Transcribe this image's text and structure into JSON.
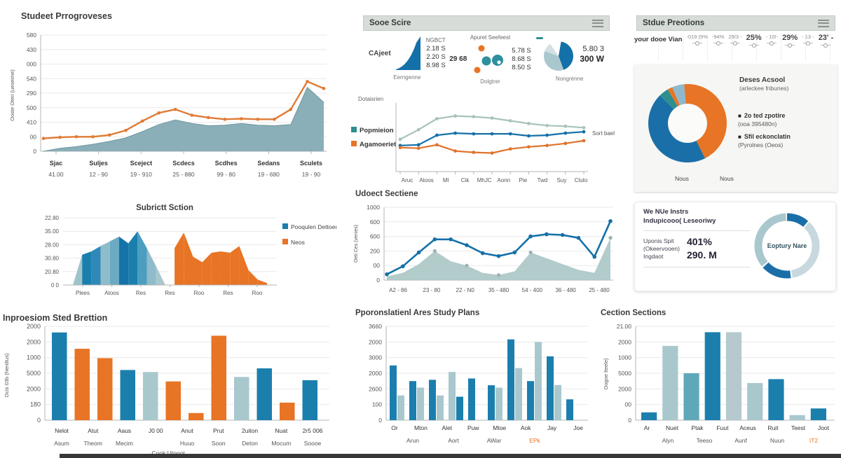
{
  "colors": {
    "blue": "#1b7fae",
    "dark_blue": "#1470a8",
    "orange": "#e87425",
    "teal_light": "#a9c8ce",
    "teal": "#2e8f8f",
    "sage": "#a8c3bb",
    "area_fill": "#8aafb8",
    "mid_teal": "#5fa8ba",
    "light_gray_teal": "#b5c9ce",
    "grid": "#e9e9e9",
    "axis": "#b5b5b5",
    "title_text": "#3b3b3b"
  },
  "panels": {
    "sooe": {
      "title": "Sooe Scire",
      "groups": [
        {
          "side_label": "CAjeet",
          "header": "NGBCT",
          "values": [
            "2.18 S",
            "2.20 S",
            "8.98 S"
          ],
          "caption": "Eerngenne"
        },
        {
          "header": "Apuret Seefeest",
          "big": "29 68",
          "values": [
            "5.78 S",
            "8.68 S",
            "8.50 S"
          ],
          "caption": "Dolgtrer"
        },
        {
          "header": "",
          "values": [
            "5.80 3",
            "300 W"
          ],
          "caption": "Nongrénne"
        }
      ]
    },
    "stdue": {
      "title": "Stdue Preotions",
      "label": "your dooe Vian",
      "items": [
        {
          "text": "-019 (9%",
          "big": false
        },
        {
          "text": "-94%",
          "big": false
        },
        {
          "text": "29/3 -",
          "big": false
        },
        {
          "text": "25%",
          "big": true
        },
        {
          "text": "- 10!-",
          "big": false
        },
        {
          "text": "29%",
          "big": true
        },
        {
          "text": "- 13 -",
          "big": false
        },
        {
          "text": "23' -",
          "big": true
        }
      ]
    }
  },
  "chart_data": [
    {
      "id": "student-progress",
      "type": "line",
      "title": "Studeet Prrogroveses",
      "ylabel": "Ooste Oteri (ueseime)",
      "ylim": [
        0,
        100
      ],
      "y_ticks": [
        "580",
        "430",
        "000",
        "540",
        "290",
        "500",
        "410",
        "00",
        "0"
      ],
      "x_ticks": [
        [
          "Sjac",
          "41.00"
        ],
        [
          "Suljes",
          "12 - 90"
        ],
        [
          "Sceject",
          "19 - 910"
        ],
        [
          "Scdecs",
          "25 - 880"
        ],
        [
          "Scdhes",
          "99 - 80"
        ],
        [
          "Sedans",
          "19 - 680"
        ],
        [
          "Sculets",
          "19 - 90"
        ]
      ],
      "series": [
        {
          "name": "enrollment-area",
          "kind": "area",
          "color": "#8aafb8",
          "values": [
            0,
            2.5,
            4,
            6,
            8.5,
            11.5,
            17,
            23,
            27,
            24,
            22,
            22.5,
            24,
            22.5,
            22,
            23,
            55,
            42
          ]
        },
        {
          "name": "score-line",
          "kind": "line",
          "color": "#e07b35",
          "markers": true,
          "values": [
            11,
            12,
            12.5,
            12.5,
            14,
            18,
            26,
            33,
            36,
            31,
            29,
            27.5,
            28,
            27.5,
            27.5,
            36,
            60,
            54
          ]
        }
      ]
    },
    {
      "id": "subject-section",
      "type": "area",
      "title": "Subrictt Sction",
      "ylim": [
        0,
        100
      ],
      "y_ticks": [
        "22.80",
        "35.00",
        "28.00",
        "30.80",
        "20.80",
        "0 0"
      ],
      "x_ticks": [
        "Plees",
        "Atoos",
        "Res",
        "Res",
        "Roo",
        "Res",
        "Roo"
      ],
      "legend": [
        {
          "label": "Pooqulen Dettoer",
          "color": "#1b7fae"
        },
        {
          "label": "Neos",
          "color": "#e87425"
        }
      ],
      "values": [
        0,
        45,
        50,
        58,
        65,
        72,
        62,
        80,
        55,
        28,
        0,
        55,
        78,
        42,
        34,
        48,
        50,
        48,
        58,
        22,
        8,
        3
      ],
      "band_colors": [
        "#9fc3ca",
        "#1b7fae",
        "#2e89b8",
        "#8fbcca",
        "#6aaac2",
        "#1473a8",
        "#1b7fae",
        "#4b9ec0",
        "#8fbcca",
        "#a9c8ce",
        "#ffffff",
        "#e87425",
        "#e87425",
        "#e87425",
        "#e87425",
        "#e87425",
        "#e87425",
        "#e87425",
        "#e87425",
        "#e87425",
        "#e87425"
      ]
    },
    {
      "id": "improvement",
      "type": "bar",
      "title": "Inproesiom Sted Brettion",
      "ylabel": "Ocis 03b (Nerdtus)",
      "ylim": [
        0,
        2300
      ],
      "y_ticks": [
        "2000",
        "2000",
        "1000",
        "5000",
        "2000",
        "180",
        "0"
      ],
      "values": [
        2150,
        1750,
        1520,
        1230,
        1180,
        950,
        175,
        2070,
        1060,
        1270,
        430,
        980
      ],
      "bar_colors": [
        "blue",
        "orange",
        "orange",
        "blue",
        "teal_light",
        "orange",
        "orange",
        "orange",
        "teal_light",
        "blue",
        "orange",
        "blue"
      ],
      "x_ticks": [
        [
          "Nelot",
          "Asum"
        ],
        [
          "Atut",
          "Theom"
        ],
        [
          "Aaus",
          "Mecim"
        ],
        [
          "J0 00",
          ""
        ],
        [
          "Anut",
          "Huuo"
        ],
        [
          "Prut",
          "Soon"
        ],
        [
          "2uiton",
          "Deton"
        ],
        [
          "Nuat",
          "Mocum"
        ],
        [
          "2r5 006",
          "Soooe"
        ]
      ],
      "x_footnote": "Cook Utooot"
    },
    {
      "id": "dotaisrien",
      "type": "line",
      "corner_label": "Dotaisrien",
      "right_label": "Sort bael",
      "ylim": [
        0,
        100
      ],
      "legend": [
        {
          "label": "Popmieion",
          "color": "#2e8f8f"
        },
        {
          "label": "Agamoeriet",
          "color": "#e87425"
        }
      ],
      "x_ticks": [
        "Aruc",
        "Atoos",
        "Ml",
        "Cik",
        "MhJC",
        "Aonn",
        "Pie",
        "Twd",
        "Suy",
        "Cluto"
      ],
      "series": [
        {
          "name": "upper",
          "color": "#a8c3bb",
          "markers": true,
          "values": [
            47,
            61,
            77,
            81,
            80,
            78,
            74,
            70,
            67,
            66,
            64
          ]
        },
        {
          "name": "middle",
          "color": "#1470a8",
          "markers": true,
          "values": [
            38,
            39,
            53,
            56,
            55,
            55,
            55,
            52,
            53,
            56,
            58
          ]
        },
        {
          "name": "lower",
          "color": "#e0732c",
          "markers": true,
          "values": [
            35,
            34,
            39,
            30,
            28,
            27,
            33,
            36,
            38,
            41,
            45
          ]
        }
      ]
    },
    {
      "id": "udoect",
      "type": "line",
      "title": "Udoect Sectiene",
      "ylabel": "Oeti Ces (venies)",
      "ylim": [
        0,
        100
      ],
      "y_ticks": [
        "1000",
        "600",
        "600",
        "200",
        "00",
        "0"
      ],
      "x_ticks": [
        "A2 - 86",
        "23 - 80",
        "22 - N0",
        "35 - 480",
        "54 - 400",
        "36 - 480",
        "25 - 480"
      ],
      "series": [
        {
          "name": "volume-area",
          "kind": "area",
          "color": "#aec8c8",
          "marker_color": "#9ab3b3",
          "marker_at": [
            3,
            5,
            7,
            9,
            14
          ],
          "values": [
            5,
            10,
            22,
            40,
            26,
            20,
            10,
            7,
            12,
            38,
            30,
            22,
            14,
            10,
            58
          ]
        },
        {
          "name": "trend-line",
          "kind": "line",
          "color": "#1470a8",
          "markers": true,
          "values": [
            8,
            19,
            38,
            56,
            56,
            48,
            37,
            33,
            38,
            60,
            63,
            62,
            58,
            32,
            81
          ]
        }
      ]
    },
    {
      "id": "study-plans",
      "type": "bar",
      "title": "Pporonslatienl Ares Study Plans",
      "ylim": [
        0,
        3600
      ],
      "y_ticks": [
        "3660",
        "2000",
        "3000",
        "2000",
        "2600",
        "100",
        "0"
      ],
      "groups": [
        [
          {
            "v": 2100,
            "c": "blue"
          },
          {
            "v": 950,
            "c": "teal_light"
          }
        ],
        [
          {
            "v": 1500,
            "c": "blue"
          },
          {
            "v": 1250,
            "c": "teal_light"
          }
        ],
        [
          {
            "v": 1550,
            "c": "blue"
          },
          {
            "v": 950,
            "c": "teal_light"
          }
        ],
        [
          {
            "v": 1850,
            "c": "teal_light"
          },
          {
            "v": 900,
            "c": "blue"
          }
        ],
        [
          {
            "v": 1600,
            "c": "blue"
          }
        ],
        [
          {
            "v": 1340,
            "c": "blue"
          },
          {
            "v": 1250,
            "c": "teal_light"
          }
        ],
        [
          {
            "v": 3100,
            "c": "blue"
          },
          {
            "v": 2000,
            "c": "teal_light"
          }
        ],
        [
          {
            "v": 1500,
            "c": "blue"
          },
          {
            "v": 3000,
            "c": "teal_light"
          }
        ],
        [
          {
            "v": 2450,
            "c": "blue"
          },
          {
            "v": 1350,
            "c": "teal_light"
          }
        ],
        [
          {
            "v": 800,
            "c": "blue"
          }
        ]
      ],
      "x_row1": [
        "Or",
        "Mton",
        "Alet",
        "Puw",
        "Mtoe",
        "Aok",
        "Jay",
        "Joe"
      ],
      "x_row2": [
        {
          "text": "Arun"
        },
        {
          "text": "Aort"
        },
        {
          "text": "AWar"
        },
        {
          "text": "EPk",
          "color": "#e87425"
        }
      ]
    },
    {
      "id": "access-donut",
      "type": "pie",
      "title": "Deses Acsool",
      "subtitle": "(arleckee fribunes)",
      "segments": [
        {
          "label": "orange",
          "value": 44,
          "color": "#e87425"
        },
        {
          "label": "blue",
          "value": 45,
          "color": "#1b6fa8"
        },
        {
          "label": "teal",
          "value": 4,
          "color": "#2e8f8f"
        },
        {
          "label": "orange-sliver",
          "value": 2,
          "color": "#e87425"
        },
        {
          "label": "light-blue",
          "value": 5,
          "color": "#8fb9cc"
        }
      ],
      "legend": [
        {
          "label": "2o ted zpotire",
          "sub": "(ooa 395480n)"
        },
        {
          "label": "Sfil eckonclatin",
          "sub": "(Pyrolnes (Oeos)"
        }
      ],
      "bottom_labels": [
        "Nous",
        "Nous"
      ]
    },
    {
      "id": "equity-ring",
      "type": "pie",
      "heading1": "We NUe Instrs",
      "heading2": "Indupicooo( Leseoriwy",
      "metric_label": [
        "Uponis Spit",
        "(Okeervooen)",
        "Ingdaot"
      ],
      "value_pct": "401%",
      "value_abs": "290. M",
      "center_label": "Eoptury Nare",
      "segments": [
        {
          "value": 12,
          "color": "#1b6fa8"
        },
        {
          "value": 36,
          "color": "#c7d9de"
        },
        {
          "value": 16,
          "color": "#1b6fa8"
        },
        {
          "value": 36,
          "color": "#a9c8ce"
        }
      ]
    },
    {
      "id": "cection",
      "type": "bar",
      "title": "Cection Sections",
      "ylabel": "Oogoe lteele)",
      "ylim": [
        0,
        2400
      ],
      "y_ticks": [
        "21.00",
        "2000",
        "1000",
        "5000",
        "2000",
        "00",
        "0"
      ],
      "values": [
        200,
        1900,
        1200,
        2250,
        2250,
        950,
        1050,
        130,
        300
      ],
      "bar_colors": [
        "blue",
        "teal_light",
        "mid_teal",
        "blue",
        "light_gray_teal",
        "teal_light",
        "blue",
        "teal_light",
        "blue"
      ],
      "x_row1": [
        "Ar",
        "Nuet",
        "Ptak",
        "Fuut",
        "Aceus",
        "Ruit",
        "Teest",
        "Joot"
      ],
      "x_row2": [
        {
          "text": "Alyn"
        },
        {
          "text": "Teeso"
        },
        {
          "text": "Aunf"
        },
        {
          "text": "Nuun"
        },
        {
          "text": "IT2",
          "color": "#e87425"
        }
      ]
    }
  ]
}
